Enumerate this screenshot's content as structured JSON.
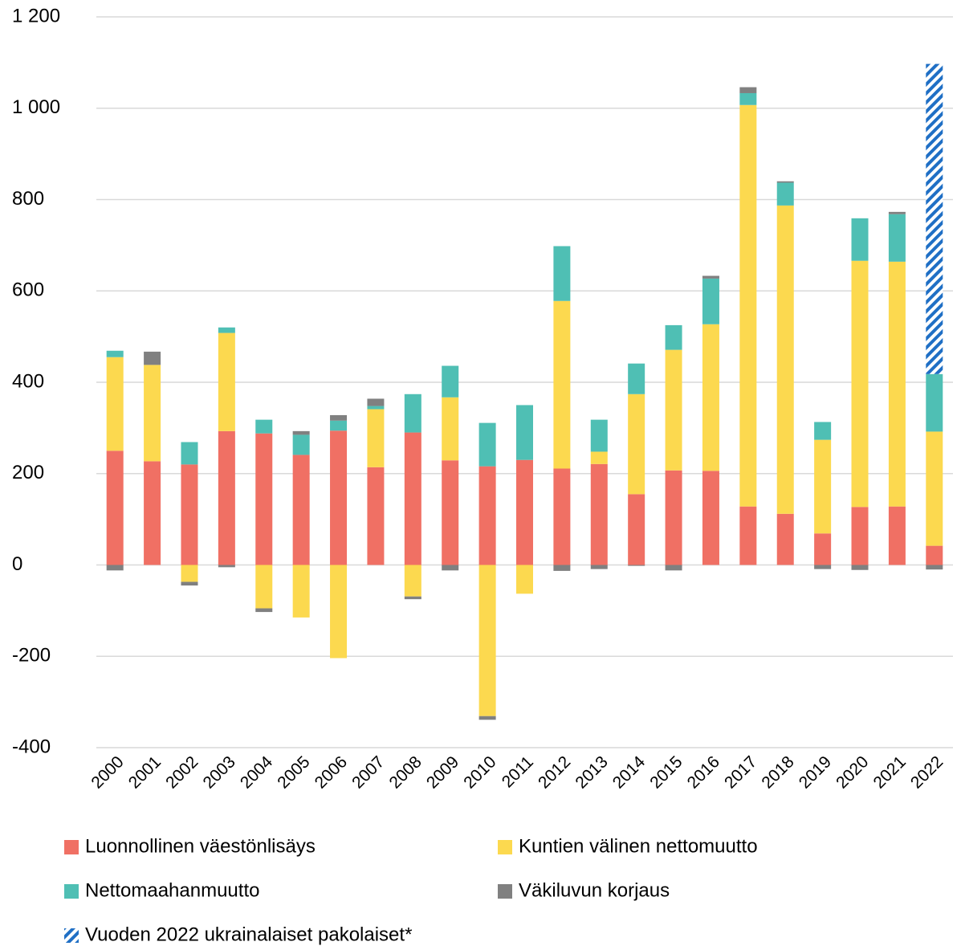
{
  "chart_data": {
    "type": "stacked_bar",
    "categories": [
      "2000",
      "2001",
      "2002",
      "2003",
      "2004",
      "2005",
      "2006",
      "2007",
      "2008",
      "2009",
      "2010",
      "2011",
      "2012",
      "2013",
      "2014",
      "2015",
      "2016",
      "2017",
      "2018",
      "2019",
      "2020",
      "2021",
      "2022"
    ],
    "series": [
      {
        "name": "Luonnollinen väestönlisäys",
        "color": "#f07064",
        "values": [
          250,
          227,
          220,
          293,
          288,
          241,
          294,
          214,
          290,
          229,
          216,
          230,
          211,
          221,
          155,
          207,
          206,
          128,
          112,
          69,
          127,
          128,
          42
        ]
      },
      {
        "name": "Kuntien välinen nettomuutto",
        "color": "#fcd94f",
        "values": [
          205,
          211,
          -37,
          215,
          -95,
          -115,
          -204,
          127,
          -69,
          138,
          -331,
          -63,
          367,
          27,
          219,
          264,
          321,
          879,
          675,
          205,
          539,
          536,
          250
        ]
      },
      {
        "name": "Nettomaahanmuutto",
        "color": "#4fbfb4",
        "values": [
          14,
          0,
          49,
          12,
          30,
          44,
          22,
          7,
          84,
          69,
          95,
          120,
          120,
          70,
          67,
          54,
          100,
          26,
          50,
          39,
          93,
          104,
          126
        ]
      },
      {
        "name": "Väkiluvun korjaus",
        "color": "#808080",
        "values": [
          -12,
          29,
          -8,
          -5,
          -8,
          8,
          12,
          16,
          -6,
          -12,
          -8,
          0,
          -13,
          -9,
          -2,
          -12,
          6,
          13,
          3,
          -9,
          -11,
          5,
          -10
        ]
      },
      {
        "name": "Vuoden 2022 ukrainalaiset pakolaiset*",
        "color": "#1f6fc5",
        "hatched": true,
        "values": [
          0,
          0,
          0,
          0,
          0,
          0,
          0,
          0,
          0,
          0,
          0,
          0,
          0,
          0,
          0,
          0,
          0,
          0,
          0,
          0,
          0,
          0,
          679
        ]
      }
    ],
    "ylim": [
      -400,
      1200
    ],
    "yticks": [
      -400,
      -200,
      0,
      200,
      400,
      600,
      800,
      1000,
      {
        "value": 1000,
        "label": "1 000"
      },
      {
        "value": 1200,
        "label": "1 200"
      }
    ],
    "grid": true
  }
}
